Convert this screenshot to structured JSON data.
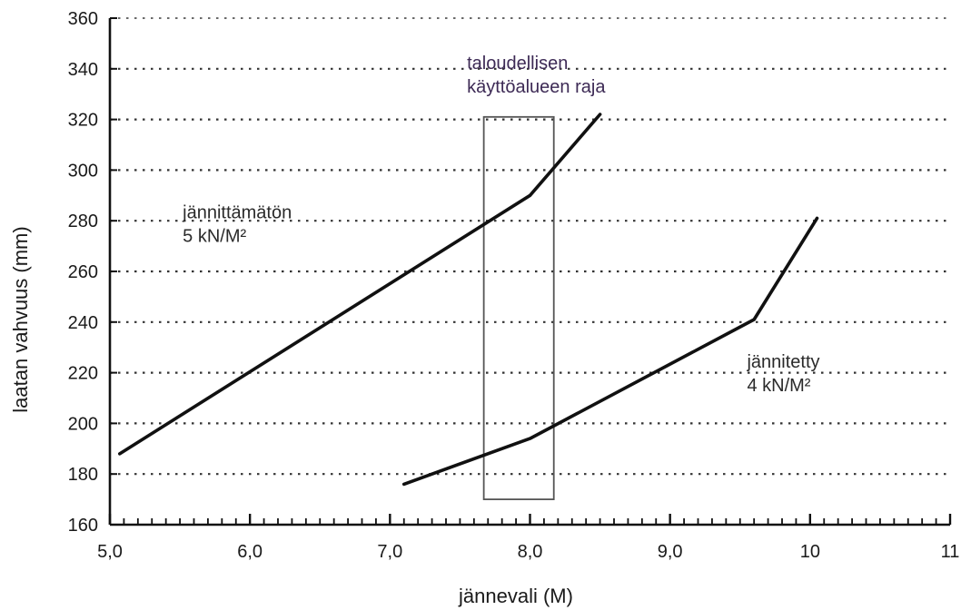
{
  "chart_data": {
    "type": "line",
    "title": "",
    "xlabel": "jännevali (M)",
    "ylabel": "laatan vahvuus (mm)",
    "xlim": [
      5.0,
      11.0
    ],
    "ylim": [
      160,
      360
    ],
    "x_ticks": [
      5.0,
      6.0,
      7.0,
      8.0,
      9.0,
      10.0,
      11.0
    ],
    "x_tick_labels": [
      "5,0",
      "6,0",
      "7,0",
      "8,0",
      "9,0",
      "10",
      "11"
    ],
    "y_ticks": [
      160,
      180,
      200,
      220,
      240,
      260,
      280,
      300,
      320,
      340,
      360
    ],
    "y_tick_labels": [
      "160",
      "180",
      "200",
      "220",
      "240",
      "260",
      "280",
      "300",
      "320",
      "340",
      "360"
    ],
    "grid": "horizontal dotted",
    "series": [
      {
        "name": "jännittämätön 5 kN/M²",
        "x": [
          5.07,
          8.0,
          8.5
        ],
        "y": [
          188,
          290,
          322
        ]
      },
      {
        "name": "jännitetty 4 kN/M²",
        "x": [
          7.1,
          8.0,
          9.6,
          10.05
        ],
        "y": [
          176,
          194,
          241,
          281
        ]
      }
    ],
    "region": {
      "x0": 7.67,
      "x1": 8.17,
      "y0": 170,
      "y1": 321
    },
    "annotations": [
      {
        "lines": [
          "taloudellisen",
          "käyttöalueen raja"
        ],
        "x": 7.55,
        "y": 340,
        "color": "#3d2a55"
      },
      {
        "lines": [
          "jännittämätön",
          "5 kN/M²"
        ],
        "x": 5.52,
        "y": 281,
        "color": "#2a2a2a"
      },
      {
        "lines": [
          "jännitetty",
          "4 kN/M²"
        ],
        "x": 9.55,
        "y": 222,
        "color": "#2a2a2a"
      }
    ]
  }
}
